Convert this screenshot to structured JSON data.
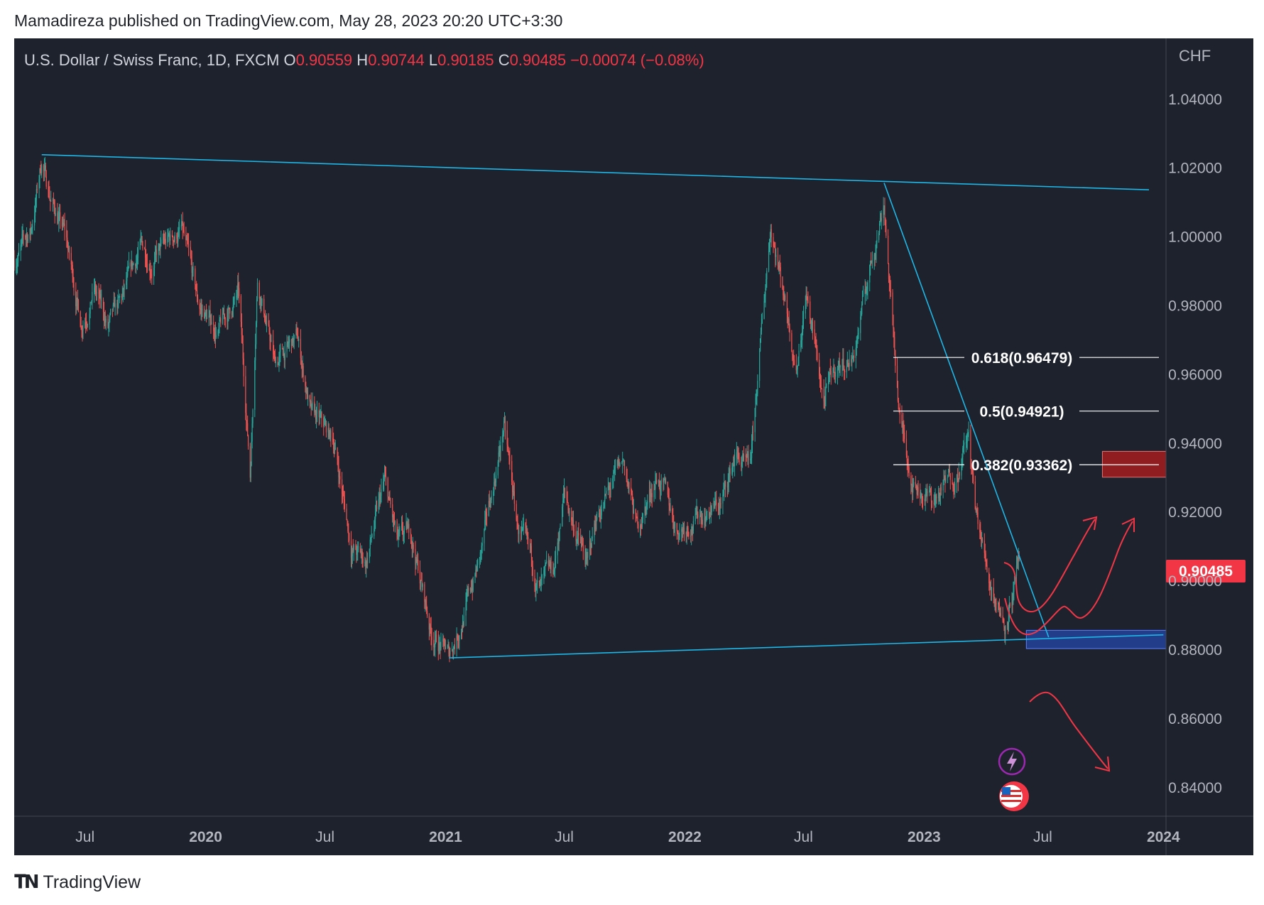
{
  "header": {
    "published_line": "Mamadireza published on TradingView.com, May 28, 2023 20:20 UTC+3:30"
  },
  "footer": {
    "brand": "TradingView"
  },
  "colors": {
    "background": "#1e222d",
    "up": "#26a69a",
    "down": "#ef5350",
    "trendline": "#1fb6e6",
    "annotation_arrow": "#f23645",
    "support_zone": "#2962ff",
    "resistance_zone": "#b71c1c",
    "price_label": "#f23645"
  },
  "chart_data": {
    "type": "candlestick",
    "title": "U.S. Dollar / Swiss Franc, 1D, FXCM",
    "ohlc": {
      "o_label": "O",
      "o": "0.90559",
      "h_label": "H",
      "h": "0.90744",
      "l_label": "L",
      "l": "0.90185",
      "c_label": "C",
      "c": "0.90485",
      "change": "−0.00074 (−0.08%)"
    },
    "currency": "CHF",
    "last_price": "0.90485",
    "x_range": [
      "2019-03-15",
      "2024-01-05"
    ],
    "ylim": [
      0.8315,
      1.0575
    ],
    "y_ticks": [
      "1.04000",
      "1.02000",
      "1.00000",
      "0.98000",
      "0.96000",
      "0.94000",
      "0.92000",
      "0.90000",
      "0.88000",
      "0.86000",
      "0.84000"
    ],
    "x_ticks": [
      {
        "label": "Jul",
        "date": "2019-07-01",
        "bold": false
      },
      {
        "label": "2020",
        "date": "2020-01-01",
        "bold": true
      },
      {
        "label": "Jul",
        "date": "2020-07-01",
        "bold": false
      },
      {
        "label": "2021",
        "date": "2021-01-01",
        "bold": true
      },
      {
        "label": "Jul",
        "date": "2021-07-01",
        "bold": false
      },
      {
        "label": "2022",
        "date": "2022-01-01",
        "bold": true
      },
      {
        "label": "Jul",
        "date": "2022-07-01",
        "bold": false
      },
      {
        "label": "2023",
        "date": "2023-01-01",
        "bold": true
      },
      {
        "label": "Jul",
        "date": "2023-07-01",
        "bold": false
      },
      {
        "label": "2024",
        "date": "2024-01-01",
        "bold": true
      }
    ],
    "price_path": [
      [
        "2019-03-15",
        0.993
      ],
      [
        "2019-04-10",
        1.002
      ],
      [
        "2019-04-26",
        1.022
      ],
      [
        "2019-05-10",
        1.011
      ],
      [
        "2019-06-01",
        1.0
      ],
      [
        "2019-06-25",
        0.975
      ],
      [
        "2019-07-15",
        0.985
      ],
      [
        "2019-08-05",
        0.973
      ],
      [
        "2019-08-25",
        0.98
      ],
      [
        "2019-09-25",
        0.997
      ],
      [
        "2019-10-10",
        0.993
      ],
      [
        "2019-11-25",
        1.002
      ],
      [
        "2019-12-20",
        0.98
      ],
      [
        "2020-01-20",
        0.972
      ],
      [
        "2020-02-20",
        0.983
      ],
      [
        "2020-03-09",
        0.931
      ],
      [
        "2020-03-20",
        0.989
      ],
      [
        "2020-04-15",
        0.963
      ],
      [
        "2020-05-20",
        0.97
      ],
      [
        "2020-06-10",
        0.948
      ],
      [
        "2020-07-15",
        0.94
      ],
      [
        "2020-08-10",
        0.91
      ],
      [
        "2020-09-01",
        0.905
      ],
      [
        "2020-09-30",
        0.928
      ],
      [
        "2020-10-20",
        0.91
      ],
      [
        "2020-11-10",
        0.913
      ],
      [
        "2020-12-10",
        0.885
      ],
      [
        "2021-01-06",
        0.878
      ],
      [
        "2021-01-25",
        0.888
      ],
      [
        "2021-02-25",
        0.908
      ],
      [
        "2021-03-31",
        0.945
      ],
      [
        "2021-04-20",
        0.916
      ],
      [
        "2021-05-25",
        0.897
      ],
      [
        "2021-06-15",
        0.902
      ],
      [
        "2021-07-01",
        0.925
      ],
      [
        "2021-08-05",
        0.904
      ],
      [
        "2021-08-20",
        0.919
      ],
      [
        "2021-09-30",
        0.934
      ],
      [
        "2021-10-20",
        0.915
      ],
      [
        "2021-11-20",
        0.931
      ],
      [
        "2021-12-20",
        0.915
      ],
      [
        "2022-01-20",
        0.919
      ],
      [
        "2022-02-25",
        0.922
      ],
      [
        "2022-03-20",
        0.937
      ],
      [
        "2022-04-10",
        0.93
      ],
      [
        "2022-05-12",
        1.004
      ],
      [
        "2022-06-10",
        0.975
      ],
      [
        "2022-06-20",
        0.962
      ],
      [
        "2022-07-05",
        0.984
      ],
      [
        "2022-08-01",
        0.952
      ],
      [
        "2022-08-20",
        0.962
      ],
      [
        "2022-09-15",
        0.965
      ],
      [
        "2022-10-20",
        1.0
      ],
      [
        "2022-11-01",
        1.011
      ],
      [
        "2022-11-10",
        0.984
      ],
      [
        "2022-11-25",
        0.947
      ],
      [
        "2022-12-15",
        0.929
      ],
      [
        "2023-01-15",
        0.923
      ],
      [
        "2023-02-20",
        0.932
      ],
      [
        "2023-03-10",
        0.942
      ],
      [
        "2023-03-20",
        0.92
      ],
      [
        "2023-04-10",
        0.901
      ],
      [
        "2023-05-04",
        0.888
      ],
      [
        "2023-05-26",
        0.9049
      ]
    ],
    "trendlines": [
      {
        "name": "upper-trendline",
        "points": [
          [
            "2019-04-26",
            1.0237
          ],
          [
            "2023-12-10",
            1.0135
          ]
        ]
      },
      {
        "name": "lower-trendline",
        "points": [
          [
            "2021-01-06",
            0.8775
          ],
          [
            "2024-01-01",
            0.8842
          ]
        ]
      },
      {
        "name": "falling-trendline",
        "points": [
          [
            "2022-11-01",
            1.0155
          ],
          [
            "2023-07-10",
            0.8835
          ]
        ]
      }
    ],
    "fibonacci": [
      {
        "label": "0.618(0.96479)",
        "value": 0.96479
      },
      {
        "label": "0.5(0.94921)",
        "value": 0.94921
      },
      {
        "label": "0.382(0.93362)",
        "value": 0.93362
      }
    ],
    "zones": [
      {
        "name": "support-zone",
        "from": "2023-06-06",
        "to": "2024-01-05",
        "low": 0.8802,
        "high": 0.8855
      },
      {
        "name": "resistance-zone",
        "from": "2023-09-30",
        "to": "2024-01-05",
        "low": 0.93,
        "high": 0.9375
      }
    ]
  }
}
